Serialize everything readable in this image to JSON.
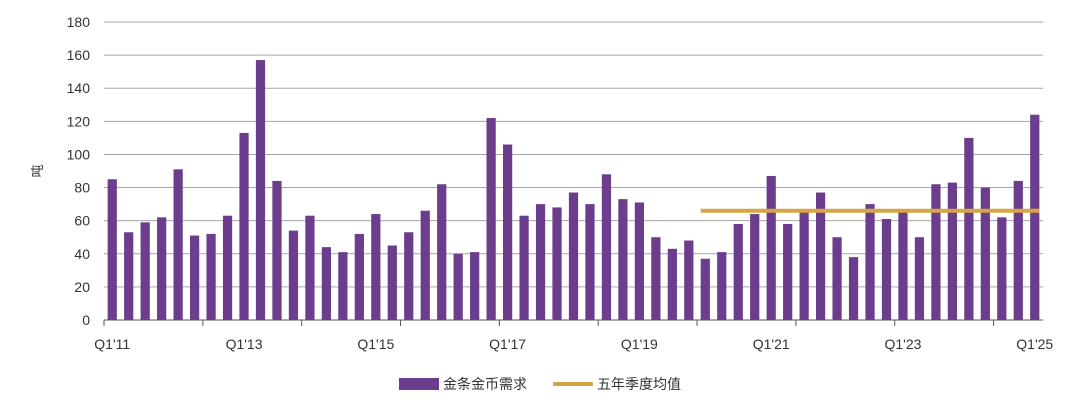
{
  "chart_data": {
    "type": "bar",
    "title": "",
    "xlabel": "",
    "ylabel": "吨",
    "ylim": [
      0,
      180
    ],
    "yticks": [
      0,
      20,
      40,
      60,
      80,
      100,
      120,
      140,
      160,
      180
    ],
    "grid": true,
    "legend_position": "bottom-center",
    "x_tick_labels": [
      "Q1'11",
      "Q1'13",
      "Q1'15",
      "Q1'17",
      "Q1'19",
      "Q1'21",
      "Q1'23",
      "Q1'25"
    ],
    "categories": [
      "Q1'11",
      "Q2'11",
      "Q3'11",
      "Q4'11",
      "Q1'12",
      "Q2'12",
      "Q3'12",
      "Q4'12",
      "Q1'13",
      "Q2'13",
      "Q3'13",
      "Q4'13",
      "Q1'14",
      "Q2'14",
      "Q3'14",
      "Q4'14",
      "Q1'15",
      "Q2'15",
      "Q3'15",
      "Q4'15",
      "Q1'16",
      "Q2'16",
      "Q3'16",
      "Q4'16",
      "Q1'17",
      "Q2'17",
      "Q3'17",
      "Q4'17",
      "Q1'18",
      "Q2'18",
      "Q3'18",
      "Q4'18",
      "Q1'19",
      "Q2'19",
      "Q3'19",
      "Q4'19",
      "Q1'20",
      "Q2'20",
      "Q3'20",
      "Q4'20",
      "Q1'21",
      "Q2'21",
      "Q3'21",
      "Q4'21",
      "Q1'22",
      "Q2'22",
      "Q3'22",
      "Q4'22",
      "Q1'23",
      "Q2'23",
      "Q3'23",
      "Q4'23",
      "Q1'24",
      "Q2'24",
      "Q3'24",
      "Q4'24",
      "Q1'25"
    ],
    "series": [
      {
        "name": "金条金币需求",
        "type": "bar",
        "color": "#6b3d8c",
        "values": [
          85,
          53,
          59,
          62,
          91,
          51,
          52,
          63,
          113,
          157,
          84,
          54,
          63,
          44,
          41,
          52,
          64,
          45,
          53,
          66,
          82,
          40,
          41,
          122,
          106,
          63,
          70,
          68,
          77,
          70,
          88,
          73,
          71,
          50,
          43,
          48,
          37,
          41,
          58,
          64,
          87,
          58,
          67,
          77,
          50,
          38,
          70,
          61,
          66,
          50,
          82,
          83,
          110,
          80,
          62,
          84,
          124
        ]
      },
      {
        "name": "五年季度均值",
        "type": "line",
        "color": "#d4a744",
        "value": 66,
        "start_category": "Q1'20",
        "end_category": "Q1'25"
      }
    ]
  }
}
